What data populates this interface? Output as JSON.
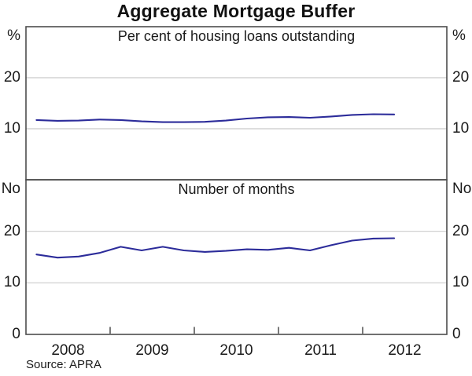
{
  "title": "Aggregate Mortgage Buffer",
  "source": "Source: APRA",
  "colors": {
    "line": "#2c2c9a",
    "gridline": "#cbcbcb",
    "frame": "#4c4c4c",
    "text": "#1a1a1a"
  },
  "x_axis": {
    "xlim": [
      2008,
      2013
    ],
    "boundary_ticks": [
      2009,
      2010,
      2011,
      2012
    ],
    "year_labels": [
      {
        "text": "2008",
        "center": 2008.5
      },
      {
        "text": "2009",
        "center": 2009.5
      },
      {
        "text": "2010",
        "center": 2010.5
      },
      {
        "text": "2011",
        "center": 2011.5
      },
      {
        "text": "2012",
        "center": 2012.5
      }
    ]
  },
  "chart_data": [
    {
      "type": "line",
      "panel": "top",
      "title": "Per cent of housing loans outstanding",
      "unit": "%",
      "ylim": [
        0,
        30
      ],
      "yticks_labeled": [
        20,
        10
      ],
      "gridlines": [
        20,
        10
      ],
      "legend": "none",
      "x": [
        2008.125,
        2008.375,
        2008.625,
        2008.875,
        2009.125,
        2009.375,
        2009.625,
        2009.875,
        2010.125,
        2010.375,
        2010.625,
        2010.875,
        2011.125,
        2011.375,
        2011.625,
        2011.875,
        2012.125,
        2012.375
      ],
      "values": [
        11.7,
        11.55,
        11.6,
        11.8,
        11.7,
        11.45,
        11.3,
        11.3,
        11.35,
        11.6,
        12.0,
        12.25,
        12.3,
        12.15,
        12.4,
        12.7,
        12.85,
        12.8
      ]
    },
    {
      "type": "line",
      "panel": "bottom",
      "title": "Number of months",
      "unit": "No",
      "ylim": [
        0,
        30
      ],
      "yticks_labeled": [
        20,
        10,
        0
      ],
      "gridlines": [
        20,
        10
      ],
      "legend": "none",
      "x": [
        2008.125,
        2008.375,
        2008.625,
        2008.875,
        2009.125,
        2009.375,
        2009.625,
        2009.875,
        2010.125,
        2010.375,
        2010.625,
        2010.875,
        2011.125,
        2011.375,
        2011.625,
        2011.875,
        2012.125,
        2012.375
      ],
      "values": [
        15.5,
        14.9,
        15.1,
        15.8,
        17.0,
        16.3,
        17.0,
        16.3,
        16.0,
        16.2,
        16.5,
        16.4,
        16.8,
        16.3,
        17.3,
        18.2,
        18.6,
        18.65
      ]
    }
  ]
}
